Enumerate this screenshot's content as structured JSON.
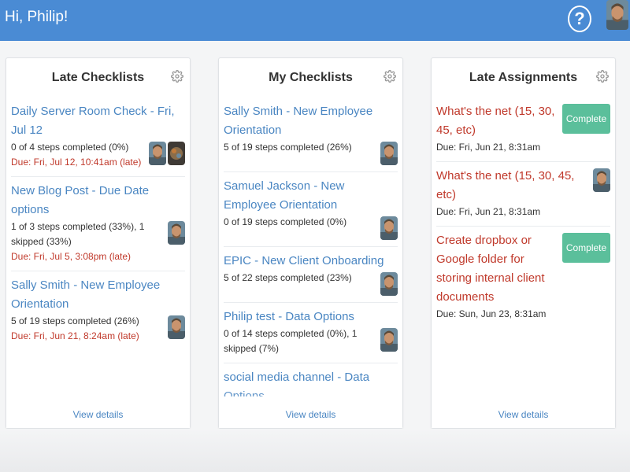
{
  "header": {
    "greeting": "Hi, Philip!",
    "help_symbol": "?",
    "help_icon": "help-circle-icon",
    "accent_color": "#4a8bd4"
  },
  "colors": {
    "link": "#4a86c2",
    "late": "#c0392b",
    "complete_button": "#5bbf9b"
  },
  "late_checklists": {
    "title": "Late Checklists",
    "view_details": "View details",
    "items": [
      {
        "title": "Daily Server Room Check - Fri, Jul 12",
        "progress": "0 of 4 steps completed (0%)",
        "due": "Due: Fri, Jul 12, 10:41am (late)"
      },
      {
        "title": "New Blog Post - Due Date options",
        "progress": "1 of 3 steps completed (33%), 1 skipped (33%)",
        "due": "Due: Fri, Jul 5, 3:08pm (late)"
      },
      {
        "title": "Sally Smith - New Employee Orientation",
        "progress": "5 of 19 steps completed (26%)",
        "due": "Due: Fri, Jun 21, 8:24am (late)"
      }
    ]
  },
  "my_checklists": {
    "title": "My Checklists",
    "view_details": "View details",
    "items": [
      {
        "title": "Sally Smith - New Employee Orientation",
        "progress": "5 of 19 steps completed (26%)"
      },
      {
        "title": "Samuel Jackson - New Employee Orientation",
        "progress": "0 of 19 steps completed (0%)"
      },
      {
        "title": "EPIC - New Client Onboarding",
        "progress": "5 of 22 steps completed (23%)"
      },
      {
        "title": "Philip test - Data Options",
        "progress": "0 of 14 steps completed (0%), 1 skipped (7%)"
      },
      {
        "title": "social media channel - Data Options",
        "progress": ""
      }
    ]
  },
  "late_assignments": {
    "title": "Late Assignments",
    "view_details": "View details",
    "items": [
      {
        "title": "What's the net (15, 30, 45, etc)",
        "due": "Due: Fri, Jun 21, 8:31am",
        "button": "Complete"
      },
      {
        "title": "What's the net (15, 30, 45, etc)",
        "due": "Due: Fri, Jun 21, 8:31am"
      },
      {
        "title": "Create dropbox or Google folder for storing internal client documents",
        "due": "Due: Sun, Jun 23, 8:31am",
        "button": "Complete"
      }
    ]
  }
}
